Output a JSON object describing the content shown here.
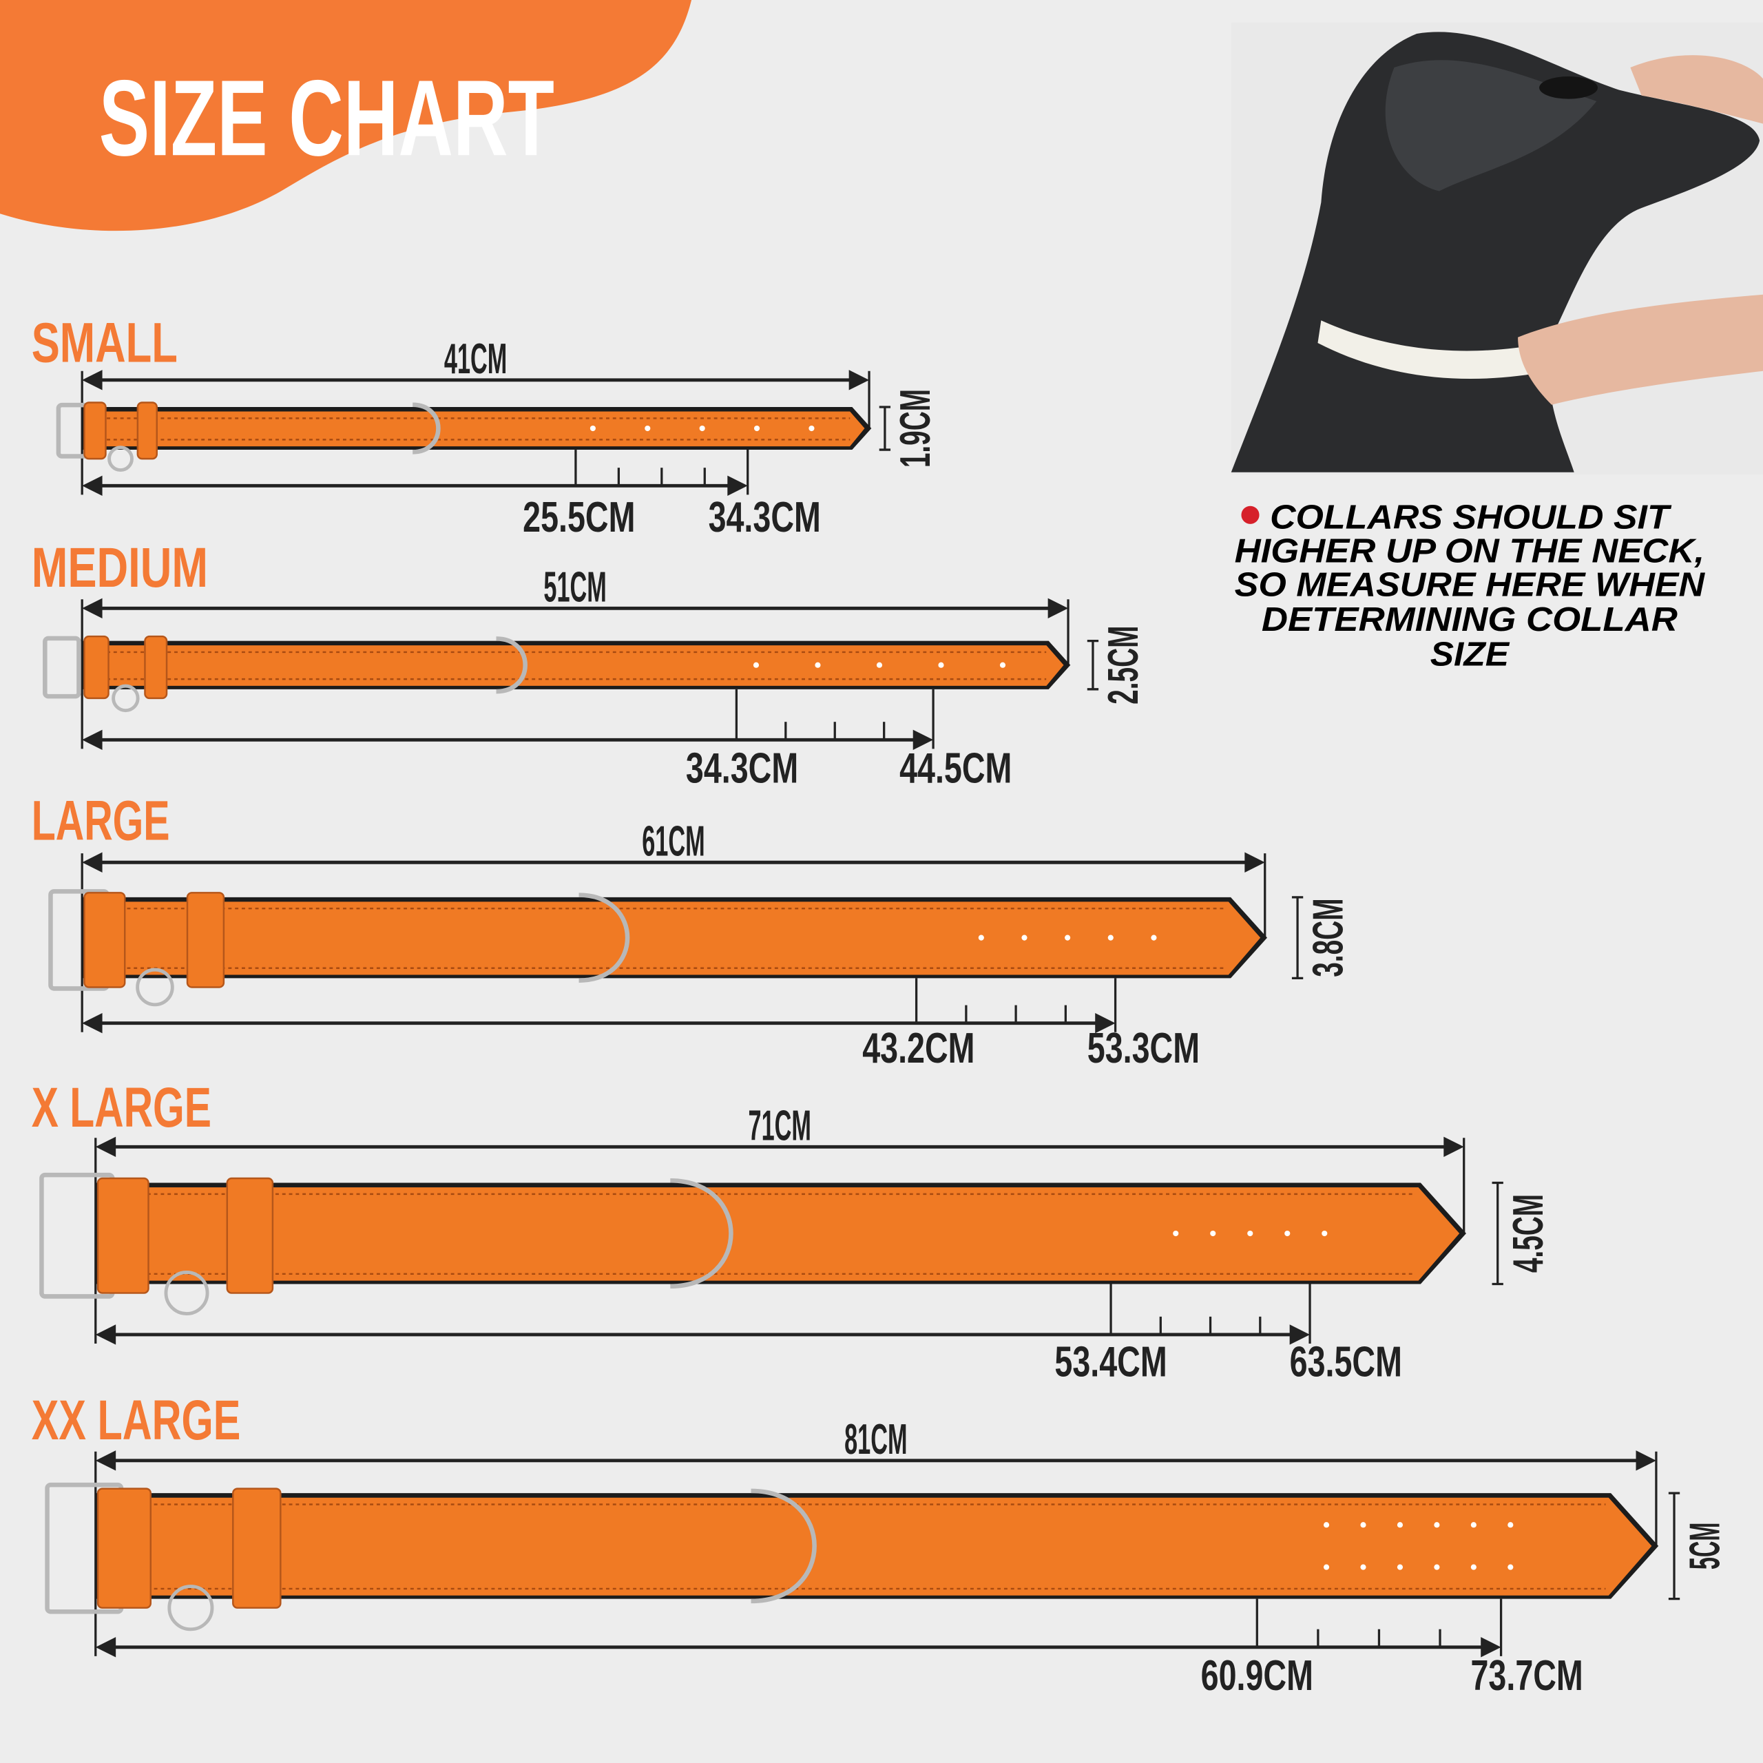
{
  "title": "SIZE CHART",
  "colors": {
    "accent": "#f47a35",
    "collar": "#f07a24",
    "text": "#222222",
    "bullet": "#d6202a",
    "background": "#ededed"
  },
  "note": {
    "bullet_icon": "red-dot",
    "lines": [
      "COLLARS SHOULD SIT",
      "HIGHER UP ON THE NECK,",
      "SO MEASURE HERE WHEN",
      "DETERMINING COLLAR",
      "SIZE"
    ]
  },
  "photo": {
    "subject": "dog-neck-measuring-tape"
  },
  "sizes": [
    {
      "name": "SMALL",
      "length": "41CM",
      "width": "1.9CM",
      "neck_min": "25.5CM",
      "neck_max": "34.3CM"
    },
    {
      "name": "MEDIUM",
      "length": "51CM",
      "width": "2.5CM",
      "neck_min": "34.3CM",
      "neck_max": "44.5CM"
    },
    {
      "name": "LARGE",
      "length": "61CM",
      "width": "3.8CM",
      "neck_min": "43.2CM",
      "neck_max": "53.3CM"
    },
    {
      "name": "X LARGE",
      "length": "71CM",
      "width": "4.5CM",
      "neck_min": "53.4CM",
      "neck_max": "63.5CM"
    },
    {
      "name": "XX LARGE",
      "length": "81CM",
      "width": "5CM",
      "neck_min": "60.9CM",
      "neck_max": "73.7CM"
    }
  ]
}
